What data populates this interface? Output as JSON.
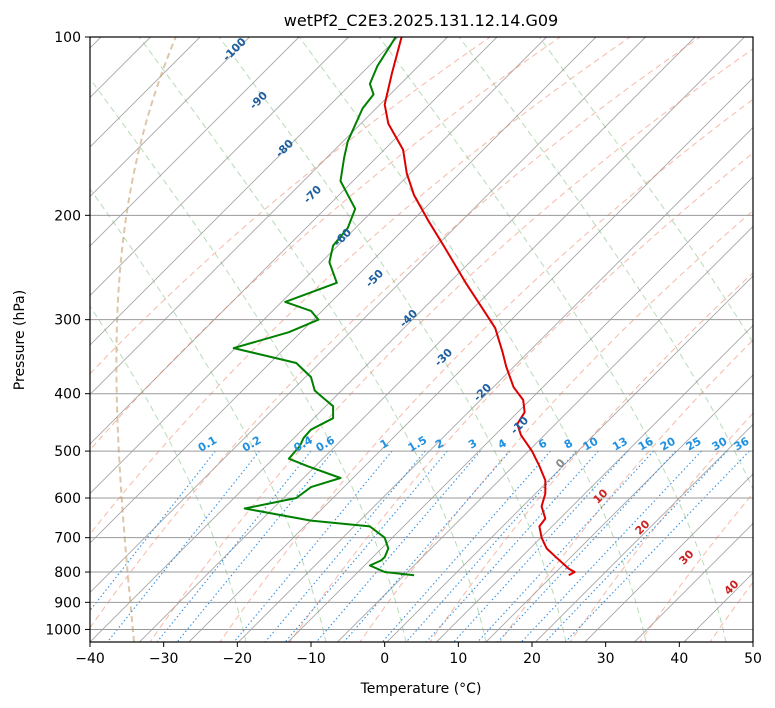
{
  "chart_data": {
    "type": "line",
    "title": "wetPf2_C2E3.2025.131.12.14.G09",
    "xlabel": "Temperature (°C)",
    "ylabel": "Pressure (hPa)",
    "xlim": [
      -40,
      50
    ],
    "ylim": [
      1050,
      100
    ],
    "y_scale": "log",
    "grid": true,
    "x_ticks": [
      "−40",
      "−30",
      "−20",
      "−10",
      "0",
      "10",
      "20",
      "30",
      "40",
      "50"
    ],
    "x_tick_values": [
      -40,
      -30,
      -20,
      -10,
      0,
      10,
      20,
      30,
      40,
      50
    ],
    "y_ticks": [
      100,
      200,
      300,
      400,
      500,
      600,
      700,
      800,
      900,
      1000
    ],
    "series": [
      {
        "color": "#dd0000",
        "x": [
          2.3,
          1.0,
          0.0,
          0.5,
          2.5,
          3.0,
          4.0,
          6.0,
          8.0,
          11.0,
          13.5,
          15.0,
          16.0,
          16.5,
          17.5,
          18.8,
          19.0,
          18.0,
          18.5,
          20.0,
          21.0,
          21.8,
          21.8,
          21.3,
          21.8,
          21.0,
          21.3,
          22.0,
          23.5,
          25.0,
          25.8,
          25.0
        ],
        "y": [
          100,
          115,
          130,
          140,
          155,
          170,
          185,
          205,
          225,
          260,
          290,
          310,
          340,
          360,
          390,
          410,
          430,
          450,
          470,
          500,
          530,
          560,
          590,
          620,
          650,
          670,
          700,
          730,
          760,
          790,
          800,
          810
        ]
      },
      {
        "color": "#008000",
        "x": [
          1.5,
          -1.0,
          -2.0,
          -1.5,
          -3.0,
          -5.0,
          -5.5,
          -6.0,
          -4.0,
          -5.0,
          -7.0,
          -7.5,
          -6.5,
          -13.5,
          -10.0,
          -9.0,
          -13.0,
          -20.5,
          -12.0,
          -10.0,
          -9.5,
          -8.5,
          -7.0,
          -7.0,
          -10.0,
          -11.0,
          -11.5,
          -13.0,
          -10.5,
          -6.0,
          -10.0,
          -12.0,
          -19.0,
          -10.0,
          -2.0,
          0.0,
          0.5,
          0.0,
          -0.5,
          -2.0,
          0.0,
          4.0
        ],
        "y": [
          100,
          112,
          120,
          125,
          132,
          150,
          160,
          175,
          195,
          210,
          225,
          240,
          260,
          280,
          290,
          300,
          315,
          335,
          355,
          375,
          395,
          405,
          420,
          440,
          460,
          475,
          490,
          515,
          530,
          555,
          575,
          600,
          625,
          655,
          670,
          700,
          730,
          755,
          765,
          780,
          800,
          810
        ]
      }
    ],
    "isotherm_labels_skewT": {
      "values": [
        -100,
        -90,
        -80,
        -70,
        -60,
        -50,
        -40,
        -30,
        -20,
        -10
      ],
      "color": "#1f5fa0"
    },
    "mixing_ratio_labels": {
      "values": [
        "0.1",
        "0.2",
        "0.4",
        "0.6",
        "1",
        "1.5",
        "2",
        "3",
        "4",
        "6",
        "8",
        "10",
        "13",
        "16",
        "20",
        "25",
        "30",
        "36"
      ],
      "color": "#2090e0"
    },
    "wet_bulb_labels": {
      "values": [
        "0",
        "10",
        "20",
        "30",
        "40"
      ],
      "color_zero": "#888888",
      "color_warm": "#cc2222"
    }
  }
}
